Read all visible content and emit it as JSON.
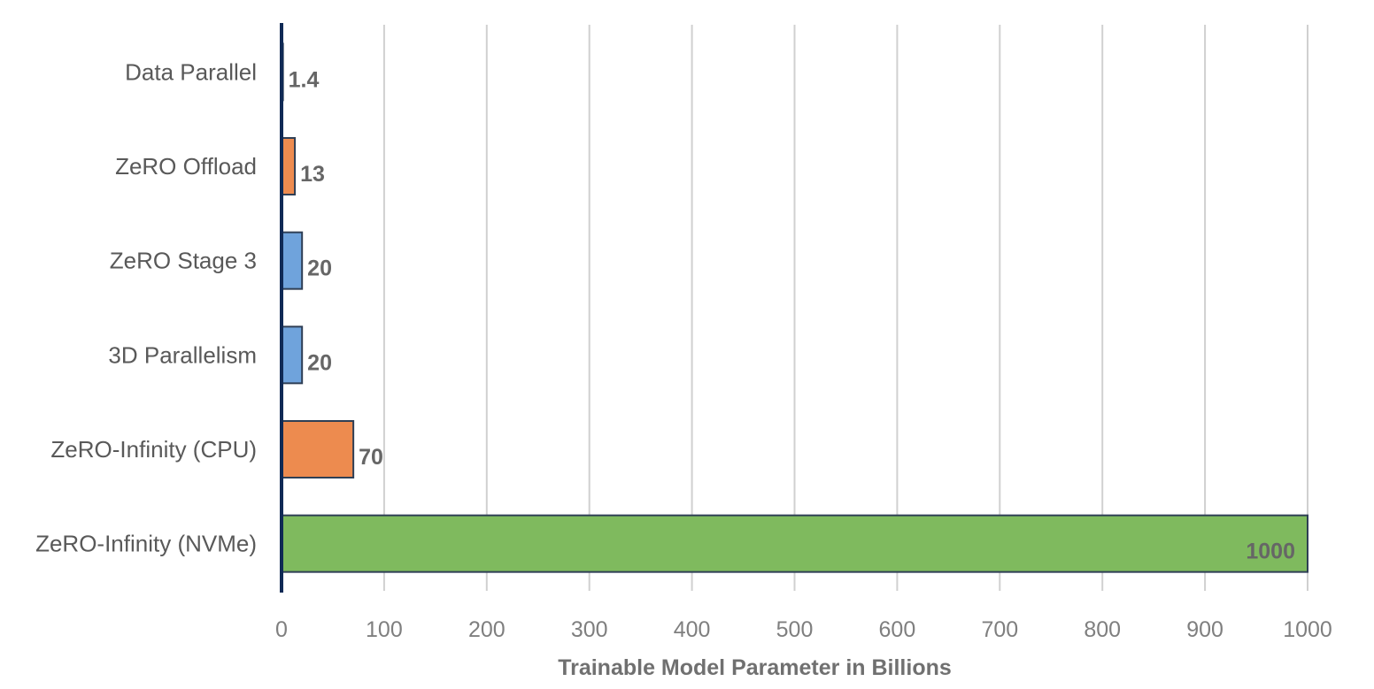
{
  "chart_data": {
    "type": "bar",
    "orientation": "horizontal",
    "categories": [
      "Data Parallel",
      "ZeRO Offload",
      "ZeRO Stage 3",
      "3D Parallelism",
      "ZeRO-Infinity (CPU)",
      "ZeRO-Infinity (NVMe)"
    ],
    "values": [
      1.4,
      13,
      20,
      20,
      70,
      1000
    ],
    "value_labels": [
      "1.4",
      "13",
      "20",
      "20",
      "70",
      "1000"
    ],
    "bar_colors": [
      "#4472c4",
      "#ed8b4f",
      "#6fa3dc",
      "#6fa3dc",
      "#ed8b4f",
      "#7fba5e"
    ],
    "xlabel": "Trainable Model Parameter in Billions",
    "ylabel": "",
    "title": "",
    "xlim": [
      0,
      1000
    ],
    "xticks": [
      0,
      100,
      200,
      300,
      400,
      500,
      600,
      700,
      800,
      900,
      1000
    ],
    "grid": "vertical",
    "legend": "none"
  }
}
